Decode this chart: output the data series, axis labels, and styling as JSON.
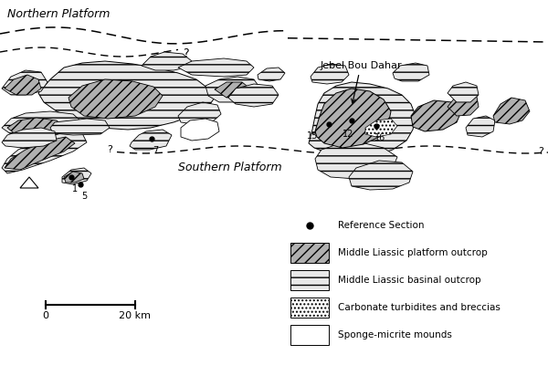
{
  "background_color": "#ffffff",
  "fig_width": 6.0,
  "fig_height": 4.12,
  "dpi": 100,
  "northern_platform_label": "Northern Platform",
  "southern_platform_label": "Southern Platform",
  "jebel_label": "Jebel Bou Dahar",
  "scale_label_0": "0",
  "scale_label_20": "20 km",
  "basinal_color": "#e8e8e8",
  "platform_color": "#b0b0b0",
  "text_color": "#000000"
}
